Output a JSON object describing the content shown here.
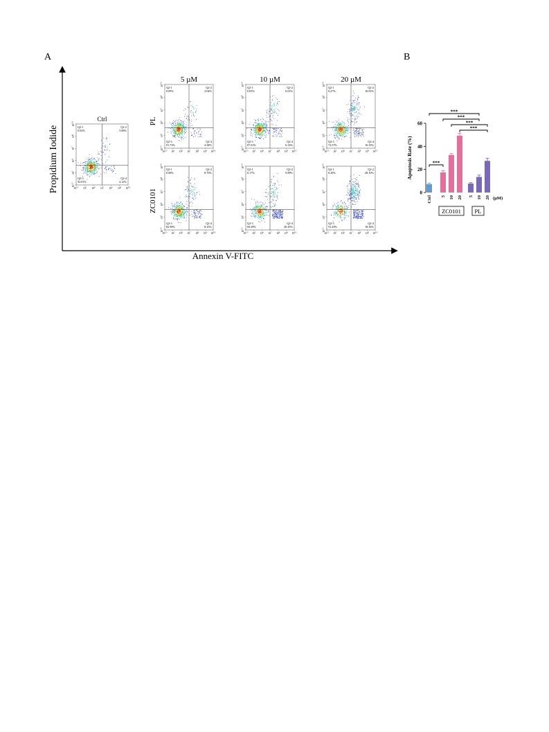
{
  "panel_a": {
    "letter": "A",
    "y_title": "Propidium Iodide",
    "x_title": "Annexin V-FITC",
    "x_ticks": [
      "10^3.5",
      "10^5",
      "10^6",
      "10^7",
      "10^8",
      "10^9",
      "10^9.5"
    ],
    "y_ticks": [
      "10^3.5",
      "10^5",
      "10^6",
      "10^7",
      "10^8",
      "10^9.0"
    ],
    "column_headers": [
      "5 µM",
      "10 µM",
      "20 µM"
    ],
    "row_labels": [
      "PL",
      "ZC0101"
    ],
    "plots": [
      {
        "title": "Ctrl",
        "q1": {
          "label": "Q2-1",
          "value": "0.02%"
        },
        "q2": {
          "label": "Q2-2",
          "value": "3.06%"
        },
        "q3": {
          "label": "Q2-3",
          "value": "92.81%"
        },
        "q4": {
          "label": "Q2-4",
          "value": "4.12%"
        }
      },
      {
        "title": "",
        "q1": {
          "label": "Q2-1",
          "value": "0.09%"
        },
        "q2": {
          "label": "Q2-2",
          "value": "3.64%"
        },
        "q3": {
          "label": "Q2-3",
          "value": "91.73%"
        },
        "q4": {
          "label": "Q2-4",
          "value": "4.58%"
        }
      },
      {
        "title": "",
        "q1": {
          "label": "Q2-1",
          "value": "0.05%"
        },
        "q2": {
          "label": "Q2-2",
          "value": "6.61%"
        },
        "q3": {
          "label": "Q2-3",
          "value": "87.01%"
        },
        "q4": {
          "label": "Q2-4",
          "value": "6.33%"
        }
      },
      {
        "title": "",
        "q1": {
          "label": "Q2-1",
          "value": "0.27%"
        },
        "q2": {
          "label": "Q2-2",
          "value": "16.81%"
        },
        "q3": {
          "label": "Q2-3",
          "value": "72.57%"
        },
        "q4": {
          "label": "Q2-4",
          "value": "10.35%"
        }
      },
      {
        "title": "",
        "q1": {
          "label": "Q2-1",
          "value": "0.08%"
        },
        "q2": {
          "label": "Q2-2",
          "value": "8.70%"
        },
        "q3": {
          "label": "Q2-3",
          "value": "82.98%"
        },
        "q4": {
          "label": "Q2-4",
          "value": "8.25%"
        }
      },
      {
        "title": "",
        "q1": {
          "label": "Q2-1",
          "value": "0.17%"
        },
        "q2": {
          "label": "Q2-2",
          "value": "9.89%"
        },
        "q3": {
          "label": "Q2-3",
          "value": "69.49%"
        },
        "q4": {
          "label": "Q2-4",
          "value": "20.45%"
        }
      },
      {
        "title": "",
        "q1": {
          "label": "Q2-1",
          "value": "0.26%"
        },
        "q2": {
          "label": "Q2-2",
          "value": "28.10%"
        },
        "q3": {
          "label": "Q2-3",
          "value": "53.29%"
        },
        "q4": {
          "label": "Q2-4",
          "value": "18.36%"
        }
      }
    ]
  },
  "chart_data": {
    "type": "bar",
    "letter": "B",
    "title": "",
    "ylabel": "Apoptosis Rate (%)",
    "xlabel": "",
    "ylim": [
      0,
      60
    ],
    "y_ticks": [
      0,
      20,
      40,
      60
    ],
    "unit_label": "(µM)",
    "bars": [
      {
        "label": "Ctrl",
        "group": "Ctrl",
        "value": 7.2,
        "error": 1.0,
        "color": "#6699cc"
      },
      {
        "label": "5",
        "group": "ZC0101",
        "value": 17.4,
        "error": 1.6,
        "color": "#e46e9c"
      },
      {
        "label": "10",
        "group": "ZC0101",
        "value": 32.5,
        "error": 1.2,
        "color": "#e46e9c"
      },
      {
        "label": "20",
        "group": "ZC0101",
        "value": 49.2,
        "error": 2.0,
        "color": "#e46e9c"
      },
      {
        "label": "5",
        "group": "PL",
        "value": 7.8,
        "error": 0.8,
        "color": "#7a68b8"
      },
      {
        "label": "10",
        "group": "PL",
        "value": 13.5,
        "error": 1.6,
        "color": "#7a68b8"
      },
      {
        "label": "20",
        "group": "PL",
        "value": 27.4,
        "error": 2.2,
        "color": "#7a68b8"
      }
    ],
    "group_labels": [
      "ZC0101",
      "PL"
    ],
    "significance": [
      {
        "from": 0,
        "to": 1,
        "label": "***"
      },
      {
        "from": 0,
        "to": 5,
        "label": "***"
      },
      {
        "from": 1,
        "to": 5,
        "label": "***"
      },
      {
        "from": 2,
        "to": 6,
        "label": "***"
      },
      {
        "from": 3,
        "to": 6,
        "label": "***"
      }
    ]
  }
}
